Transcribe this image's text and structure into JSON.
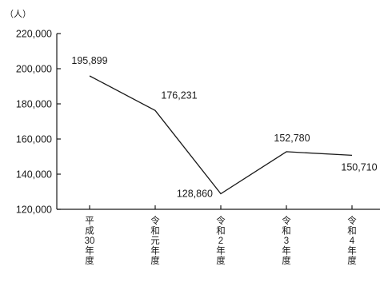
{
  "chart_data": {
    "type": "line",
    "unit_label": "（人）",
    "categories": [
      "平成30年度",
      "令和元年度",
      "令和2年度",
      "令和3年度",
      "令和4年度"
    ],
    "series": [
      {
        "values": [
          195899,
          176231,
          128860,
          152780,
          150710
        ]
      }
    ],
    "data_labels": [
      "195,899",
      "176,231",
      "128,860",
      "152,780",
      "150,710"
    ],
    "yticks": [
      120000,
      140000,
      160000,
      180000,
      200000,
      220000
    ],
    "ytick_labels": [
      "120,000",
      "140,000",
      "160,000",
      "180,000",
      "200,000",
      "220,000"
    ],
    "ylim": [
      120000,
      220000
    ],
    "grid": false,
    "legend": "none",
    "line_color": "#1a1a1a"
  }
}
